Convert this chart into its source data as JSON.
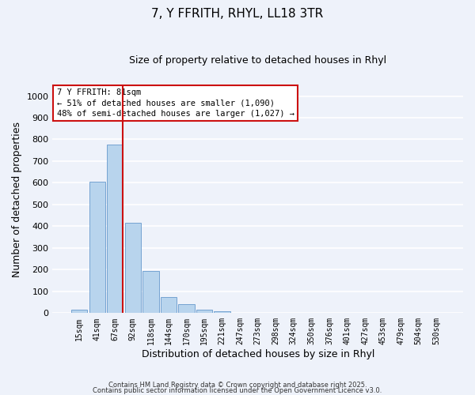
{
  "title": "7, Y FFRITH, RHYL, LL18 3TR",
  "subtitle": "Size of property relative to detached houses in Rhyl",
  "xlabel": "Distribution of detached houses by size in Rhyl",
  "ylabel": "Number of detached properties",
  "bar_labels": [
    "15sqm",
    "41sqm",
    "67sqm",
    "92sqm",
    "118sqm",
    "144sqm",
    "170sqm",
    "195sqm",
    "221sqm",
    "247sqm",
    "273sqm",
    "298sqm",
    "324sqm",
    "350sqm",
    "376sqm",
    "401sqm",
    "427sqm",
    "453sqm",
    "479sqm",
    "504sqm",
    "530sqm"
  ],
  "bar_values": [
    15,
    605,
    775,
    415,
    193,
    75,
    40,
    17,
    10,
    0,
    0,
    0,
    0,
    0,
    0,
    0,
    0,
    0,
    0,
    0,
    0
  ],
  "bar_color": "#b8d4ed",
  "bar_edge_color": "#6699cc",
  "background_color": "#eef2fa",
  "grid_color": "#ffffff",
  "ylim": [
    0,
    1050
  ],
  "yticks": [
    0,
    100,
    200,
    300,
    400,
    500,
    600,
    700,
    800,
    900,
    1000
  ],
  "vline_x_index": 2,
  "vline_color": "#cc1111",
  "annotation_title": "7 Y FFRITH: 81sqm",
  "annotation_line1": "← 51% of detached houses are smaller (1,090)",
  "annotation_line2": "48% of semi-detached houses are larger (1,027) →",
  "annotation_box_color": "#ffffff",
  "annotation_box_edge": "#cc1111",
  "footnote1": "Contains HM Land Registry data © Crown copyright and database right 2025.",
  "footnote2": "Contains public sector information licensed under the Open Government Licence v3.0."
}
